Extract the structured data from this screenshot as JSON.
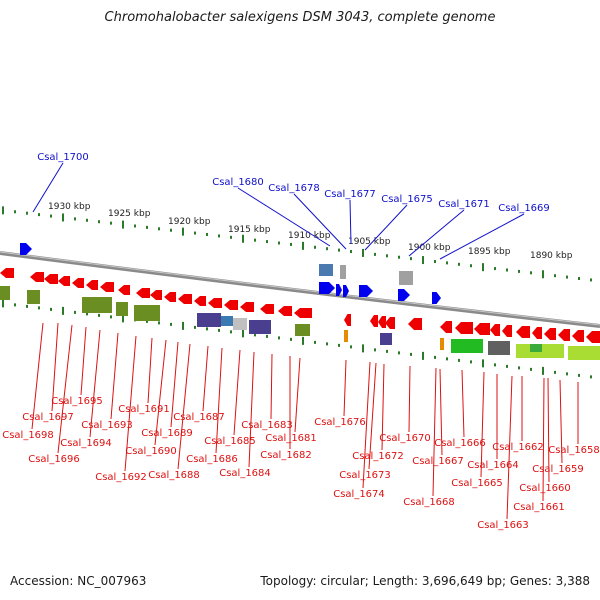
{
  "title": "Chromohalobacter salexigens DSM 3043, complete genome",
  "accession": "Accession: NC_007963",
  "summary": "Topology: circular; Length: 3,696,649 bp; Genes: 3,388",
  "colors": {
    "forward_label": "#1010cc",
    "reverse_label": "#dd1111",
    "arrow_forward": "#0000ee",
    "arrow_reverse": "#ee0000",
    "scale_ticks": "#2a7a2a",
    "backbone": "#808080"
  },
  "scale_labels": [
    "1930 kbp",
    "1925 kbp",
    "1920 kbp",
    "1915 kbp",
    "1910 kbp",
    "1905 kbp",
    "1900 kbp",
    "1895 kbp",
    "1890 kbp"
  ],
  "forward_genes": [
    "Csal_1700",
    "Csal_1680",
    "Csal_1678",
    "Csal_1677",
    "Csal_1675",
    "Csal_1671",
    "Csal_1669"
  ],
  "reverse_genes": [
    "Csal_1698",
    "Csal_1697",
    "Csal_1696",
    "Csal_1695",
    "Csal_1694",
    "Csal_1693",
    "Csal_1692",
    "Csal_1691",
    "Csal_1690",
    "Csal_1689",
    "Csal_1688",
    "Csal_1687",
    "Csal_1686",
    "Csal_1685",
    "Csal_1684",
    "Csal_1683",
    "Csal_1682",
    "Csal_1681",
    "Csal_1676",
    "Csal_1674",
    "Csal_1673",
    "Csal_1672",
    "Csal_1670",
    "Csal_1668",
    "Csal_1667",
    "Csal_1666",
    "Csal_1665",
    "Csal_1664",
    "Csal_1663",
    "Csal_1662",
    "Csal_1661",
    "Csal_1660",
    "Csal_1659",
    "Csal_1658"
  ]
}
